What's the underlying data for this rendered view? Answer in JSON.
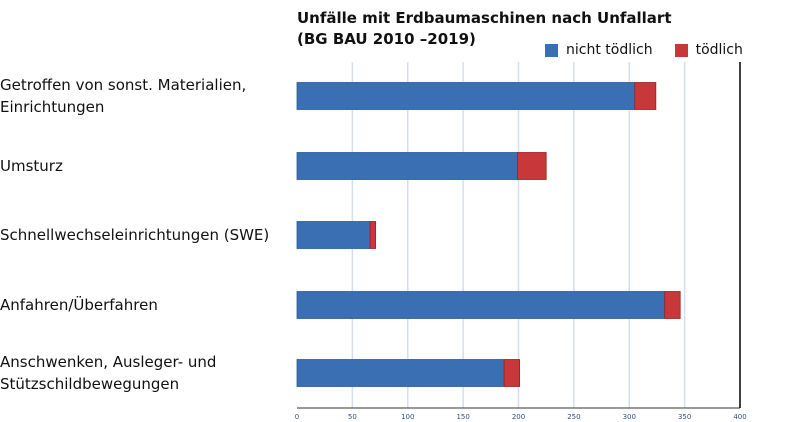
{
  "chart_data": {
    "type": "bar",
    "orientation": "horizontal",
    "stacked": true,
    "title": "Unfälle mit Erdbaumaschinen nach Unfallart\n(BG BAU 2010 –2019)",
    "title_lines": [
      "Unfälle mit Erdbaumaschinen nach Unfallart",
      "(BG BAU 2010 –2019)"
    ],
    "categories": [
      "Getroffen von sonst. Materialien, Einrichtungen",
      "Umsturz",
      "Schnellwechseleinrichtungen (SWE)",
      "Anfahren/Überfahren",
      "Anschwenken, Ausleger- und Stützschildbewegungen"
    ],
    "category_lines": [
      [
        "Getroffen von sonst. Materialien,",
        "Einrichtungen"
      ],
      [
        "Umsturz"
      ],
      [
        "Schnellwechseleinrichtungen (SWE)"
      ],
      [
        "Anfahren/Überfahren"
      ],
      [
        "Anschwenken, Ausleger- und",
        "Stützschildbewegungen"
      ]
    ],
    "series": [
      {
        "name": "nicht tödlich",
        "color": "#3a6fb4",
        "values": [
          305,
          199,
          66,
          332,
          187
        ]
      },
      {
        "name": "tödlich",
        "color": "#c8383a",
        "values": [
          19,
          26,
          5,
          14,
          14
        ]
      }
    ],
    "xlim": [
      0,
      400
    ],
    "xticks": [
      "0",
      "50",
      "100",
      "150",
      "200",
      "250",
      "300",
      "350",
      "400"
    ],
    "grid": true,
    "legend": "top-right"
  }
}
